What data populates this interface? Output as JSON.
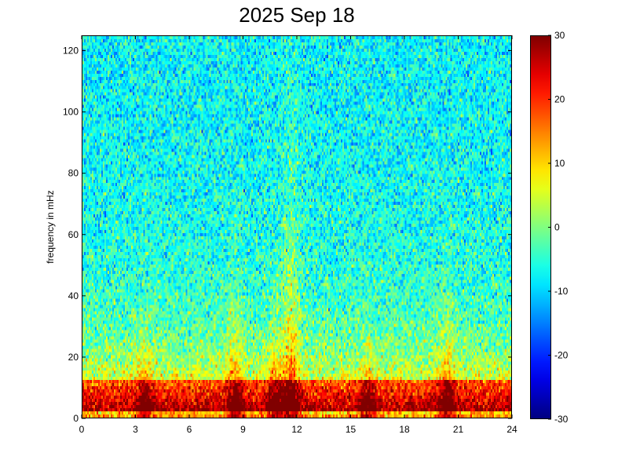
{
  "chart_data": {
    "type": "heatmap",
    "title": "2025 Sep 18",
    "xlabel": "",
    "ylabel": "frequency in mHz",
    "xlim": [
      0,
      24
    ],
    "ylim": [
      0,
      125
    ],
    "xticks": [
      "0",
      "3",
      "6",
      "9",
      "12",
      "15",
      "18",
      "21",
      "24"
    ],
    "yticks": [
      "0",
      "20",
      "40",
      "60",
      "80",
      "100",
      "120"
    ],
    "colorbar": {
      "range": [
        -30,
        30
      ],
      "ticks": [
        "30",
        "20",
        "10",
        "0",
        "-10",
        "-20",
        "-30"
      ],
      "colormap": "jet"
    },
    "bursts": [
      {
        "hour": 3.5,
        "peak_mHz": 38
      },
      {
        "hour": 8.5,
        "peak_mHz": 50
      },
      {
        "hour": 10.8,
        "peak_mHz": 42
      },
      {
        "hour": 11.7,
        "peak_mHz": 125
      },
      {
        "hour": 16.0,
        "peak_mHz": 28
      },
      {
        "hour": 20.4,
        "peak_mHz": 50
      }
    ]
  }
}
